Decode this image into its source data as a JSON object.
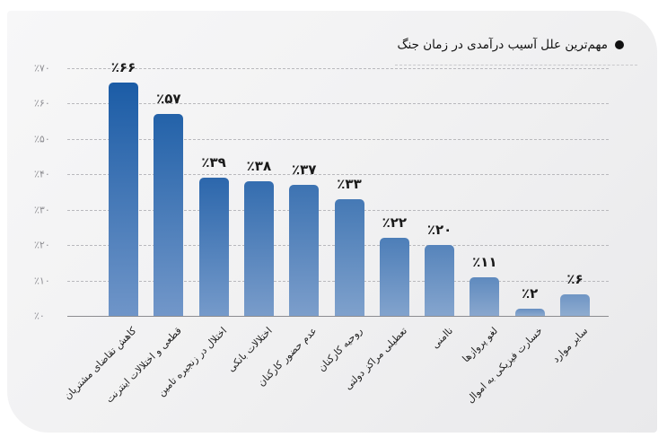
{
  "title": "مهم‌ترین علل آسیب درآمدی در زمان جنگ",
  "chart_data": {
    "type": "bar",
    "title": "مهم‌ترین علل آسیب درآمدی در زمان جنگ",
    "xlabel": "",
    "ylabel": "",
    "ylim": [
      0,
      70
    ],
    "grid": true,
    "legend": "none",
    "y_ticks": [
      "٪۰",
      "٪۱۰",
      "٪۲۰",
      "٪۳۰",
      "٪۴۰",
      "٪۵۰",
      "٪۶۰",
      "٪۷۰"
    ],
    "categories": [
      "کاهش تقاضای مشتریان",
      "قطعی و اختلالات اینترنت",
      "اختلال در زنجیره تامین",
      "اختلالات بانکی",
      "عدم حضور کارکنان",
      "روحیه کارکنان",
      "تعطیلی مراکز دولتی",
      "ناامنی",
      "لغو پروازها",
      "خسارت فیزیکی به اموال",
      "سایر موارد"
    ],
    "values": [
      66,
      57,
      39,
      38,
      37,
      33,
      22,
      20,
      11,
      2,
      6
    ],
    "value_labels": [
      "٪۶۶",
      "٪۵۷",
      "٪۳۹",
      "٪۳۸",
      "٪۳۷",
      "٪۳۳",
      "٪۲۲",
      "٪۲۰",
      "٪۱۱",
      "٪۲",
      "٪۶"
    ],
    "colors": {
      "bar_dark": "#1f5fa3",
      "bar_light": "#8aa8cc"
    }
  }
}
